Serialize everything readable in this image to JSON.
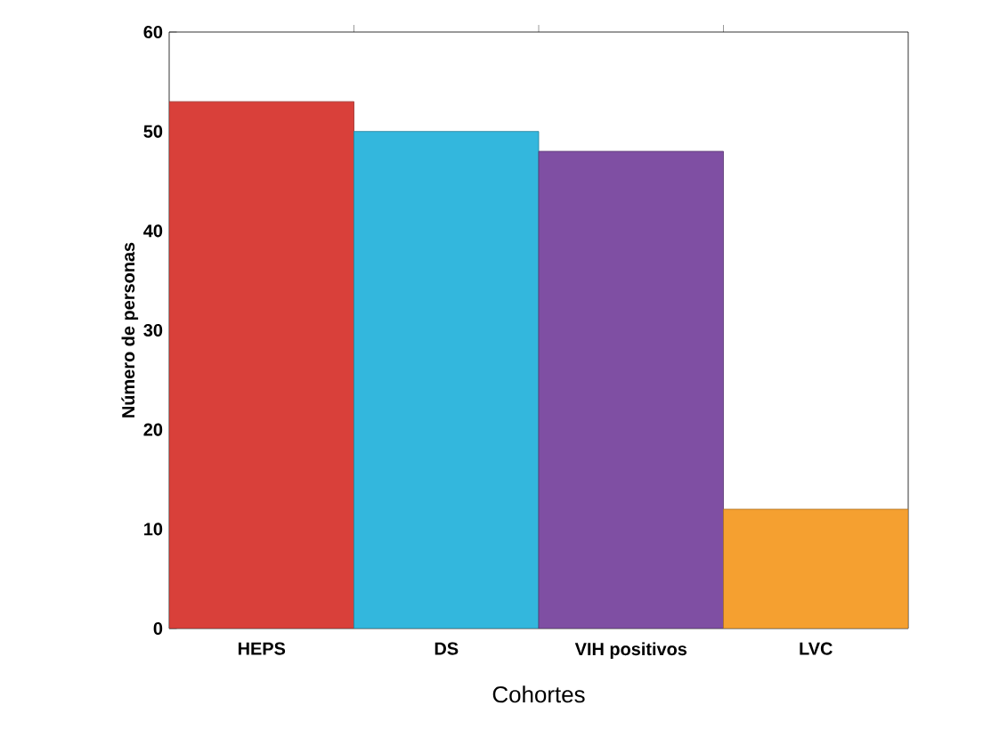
{
  "chart_data": {
    "type": "bar",
    "xlabel": "Cohortes",
    "ylabel": "Número de personas",
    "categories": [
      "HEPS",
      "DS",
      "VIH positivos",
      "LVC"
    ],
    "values": [
      53,
      50,
      48,
      12
    ],
    "colors": [
      "#d9403a",
      "#33b7dd",
      "#7f4fa3",
      "#f5a030"
    ],
    "ylim": [
      0,
      60
    ],
    "yticks": [
      0,
      10,
      20,
      30,
      40,
      50,
      60
    ],
    "grid": false
  }
}
